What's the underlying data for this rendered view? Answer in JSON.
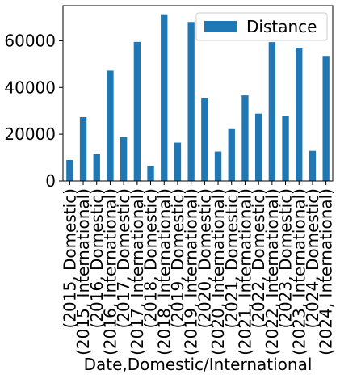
{
  "chart_data": {
    "type": "bar",
    "title": "",
    "xlabel": "Date,Domestic/International",
    "ylabel": "",
    "categories": [
      "(2015, Domestic)",
      "(2015, International)",
      "(2016, Domestic)",
      "(2016, International)",
      "(2017, Domestic)",
      "(2017, International)",
      "(2018, Domestic)",
      "(2018, International)",
      "(2019, Domestic)",
      "(2019, International)",
      "(2020, Domestic)",
      "(2020, International)",
      "(2021, Domestic)",
      "(2021, International)",
      "(2022, Domestic)",
      "(2022, International)",
      "(2023, Domestic)",
      "(2023, International)",
      "(2024, Domestic)",
      "(2024, International)"
    ],
    "series": [
      {
        "name": "Distance",
        "color": "#1f77b4",
        "values": [
          9000,
          27300,
          11500,
          47200,
          18800,
          59500,
          6400,
          71300,
          16400,
          68000,
          35600,
          12600,
          22200,
          36600,
          28800,
          59400,
          27700,
          57000,
          12900,
          53500
        ]
      }
    ],
    "ylim": [
      0,
      75000
    ],
    "yticks": [
      0,
      20000,
      40000,
      60000
    ],
    "ytick_labels": [
      "0",
      "20000",
      "40000",
      "60000"
    ],
    "grid": false,
    "legend": "top-right"
  }
}
